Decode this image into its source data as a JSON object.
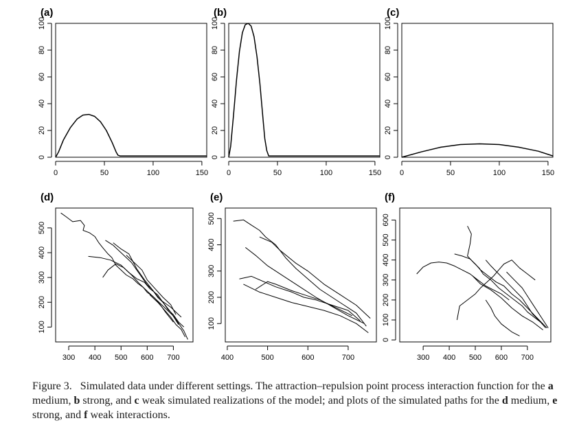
{
  "chart_data": [
    {
      "id": "a",
      "label": "(a)",
      "type": "line",
      "xlim": [
        0,
        155
      ],
      "ylim": [
        0,
        100
      ],
      "xticks": [
        0,
        50,
        100,
        150
      ],
      "yticks": [
        0,
        20,
        40,
        60,
        80,
        100
      ],
      "series": [
        {
          "x": [
            0,
            3,
            8,
            15,
            22,
            28,
            34,
            40,
            46,
            52,
            58,
            62,
            64,
            66,
            70,
            100,
            155
          ],
          "y": [
            0,
            4,
            13,
            22,
            28.5,
            31.5,
            32,
            30.5,
            26.5,
            20,
            11,
            4,
            1.5,
            1,
            1,
            1,
            1
          ]
        }
      ]
    },
    {
      "id": "b",
      "label": "(b)",
      "type": "line",
      "xlim": [
        0,
        155
      ],
      "ylim": [
        0,
        100
      ],
      "xticks": [
        0,
        50,
        100,
        150
      ],
      "yticks": [
        0,
        20,
        40,
        60,
        80,
        100
      ],
      "series": [
        {
          "x": [
            0,
            2,
            5,
            8,
            11,
            14,
            17,
            20,
            23,
            26,
            29,
            32,
            35,
            37,
            39,
            41,
            45,
            100,
            155
          ],
          "y": [
            0,
            8,
            32,
            58,
            79,
            93,
            99,
            100,
            98,
            90,
            75,
            55,
            30,
            14,
            5,
            1,
            1,
            1,
            1
          ]
        }
      ]
    },
    {
      "id": "c",
      "label": "(c)",
      "type": "line",
      "xlim": [
        0,
        155
      ],
      "ylim": [
        0,
        100
      ],
      "xticks": [
        0,
        50,
        100,
        150
      ],
      "yticks": [
        0,
        20,
        40,
        60,
        80,
        100
      ],
      "series": [
        {
          "x": [
            0,
            20,
            40,
            60,
            80,
            100,
            120,
            140,
            155
          ],
          "y": [
            0,
            4,
            7.5,
            9.5,
            10,
            9.5,
            7.5,
            4.5,
            1
          ]
        }
      ]
    },
    {
      "id": "d",
      "label": "(d)",
      "type": "line",
      "xlim": [
        250,
        775
      ],
      "ylim": [
        40,
        580
      ],
      "xticks": [
        300,
        400,
        500,
        600,
        700
      ],
      "yticks": [
        100,
        200,
        300,
        400,
        500
      ],
      "series": [
        {
          "x": [
            270,
            290,
            315,
            345,
            360,
            355,
            380,
            400,
            415,
            430,
            450,
            465,
            480,
            500,
            520,
            545,
            565,
            585,
            600,
            620,
            640,
            660,
            680,
            700,
            720,
            740,
            755
          ],
          "y": [
            560,
            545,
            525,
            530,
            510,
            490,
            480,
            465,
            440,
            420,
            395,
            380,
            350,
            330,
            310,
            295,
            275,
            260,
            240,
            225,
            205,
            185,
            165,
            145,
            115,
            85,
            50
          ]
        },
        {
          "x": [
            440,
            470,
            500,
            520,
            540,
            560,
            580,
            600,
            620,
            640,
            660,
            680,
            700,
            720,
            740
          ],
          "y": [
            450,
            430,
            400,
            380,
            360,
            330,
            300,
            270,
            250,
            220,
            200,
            170,
            150,
            120,
            100
          ]
        },
        {
          "x": [
            375,
            420,
            460,
            500,
            530,
            560,
            590,
            610,
            640,
            660,
            690,
            720
          ],
          "y": [
            385,
            380,
            370,
            350,
            320,
            295,
            280,
            255,
            230,
            200,
            160,
            110
          ]
        },
        {
          "x": [
            430,
            450,
            480,
            510,
            540,
            570,
            600,
            630,
            650,
            670,
            700
          ],
          "y": [
            300,
            330,
            355,
            340,
            310,
            275,
            245,
            215,
            190,
            160,
            120
          ]
        },
        {
          "x": [
            470,
            500,
            530,
            545,
            560,
            590,
            620,
            650,
            690,
            730
          ],
          "y": [
            440,
            415,
            395,
            365,
            335,
            290,
            250,
            210,
            180,
            140
          ]
        },
        {
          "x": [
            520,
            550,
            580,
            600,
            630,
            660,
            690,
            710
          ],
          "y": [
            390,
            360,
            330,
            290,
            255,
            220,
            190,
            150
          ]
        },
        {
          "x": [
            610,
            640,
            665,
            690,
            710,
            730,
            745
          ],
          "y": [
            230,
            200,
            170,
            140,
            110,
            90,
            60
          ]
        }
      ]
    },
    {
      "id": "e",
      "label": "(e)",
      "type": "line",
      "xlim": [
        395,
        770
      ],
      "ylim": [
        30,
        540
      ],
      "xticks": [
        400,
        500,
        600,
        700
      ],
      "yticks": [
        100,
        200,
        300,
        400,
        500
      ],
      "series": [
        {
          "x": [
            415,
            440,
            460,
            480,
            495,
            520,
            545,
            570,
            600,
            630,
            660,
            690,
            720,
            745
          ],
          "y": [
            490,
            495,
            475,
            455,
            430,
            400,
            350,
            310,
            270,
            230,
            200,
            170,
            140,
            90
          ]
        },
        {
          "x": [
            430,
            460,
            490,
            520,
            560,
            590,
            620,
            660,
            700,
            730
          ],
          "y": [
            270,
            280,
            260,
            240,
            220,
            200,
            190,
            170,
            150,
            110
          ]
        },
        {
          "x": [
            445,
            470,
            500,
            540,
            580,
            620,
            660,
            700,
            740
          ],
          "y": [
            390,
            360,
            320,
            280,
            240,
            200,
            165,
            130,
            100
          ]
        },
        {
          "x": [
            470,
            500,
            520,
            560,
            590,
            630,
            670,
            710
          ],
          "y": [
            230,
            260,
            250,
            225,
            210,
            190,
            160,
            130
          ]
        },
        {
          "x": [
            480,
            510,
            530,
            570,
            600,
            640,
            680,
            720,
            755
          ],
          "y": [
            430,
            410,
            380,
            330,
            300,
            250,
            210,
            170,
            120
          ]
        },
        {
          "x": [
            440,
            480,
            520,
            560,
            600,
            640,
            680,
            720,
            750
          ],
          "y": [
            250,
            220,
            200,
            180,
            165,
            150,
            130,
            100,
            65
          ]
        }
      ]
    },
    {
      "id": "f",
      "label": "(f)",
      "type": "line",
      "xlim": [
        210,
        790
      ],
      "ylim": [
        -10,
        660
      ],
      "xticks": [
        300,
        400,
        500,
        600,
        700
      ],
      "yticks": [
        0,
        100,
        200,
        300,
        400,
        500,
        600
      ],
      "series": [
        {
          "x": [
            470,
            485,
            480,
            470,
            495,
            515,
            530,
            560,
            590,
            620,
            650,
            680,
            700,
            730,
            760,
            775
          ],
          "y": [
            570,
            530,
            480,
            420,
            385,
            360,
            330,
            300,
            260,
            230,
            200,
            170,
            140,
            110,
            80,
            60
          ]
        },
        {
          "x": [
            420,
            450,
            480,
            500,
            520,
            550,
            580,
            610,
            640,
            670,
            700,
            730,
            760
          ],
          "y": [
            430,
            420,
            405,
            380,
            350,
            320,
            290,
            270,
            230,
            200,
            160,
            120,
            80
          ]
        },
        {
          "x": [
            275,
            300,
            330,
            360,
            390,
            420,
            450,
            480,
            510,
            540,
            570,
            600,
            630
          ],
          "y": [
            330,
            365,
            385,
            390,
            385,
            370,
            350,
            330,
            300,
            270,
            250,
            230,
            200
          ]
        },
        {
          "x": [
            430,
            440,
            470,
            500,
            520,
            545,
            570,
            590,
            610,
            640,
            670,
            700,
            730
          ],
          "y": [
            100,
            170,
            200,
            230,
            260,
            290,
            320,
            350,
            380,
            400,
            360,
            330,
            300
          ]
        },
        {
          "x": [
            540,
            560,
            590,
            620,
            650,
            680,
            700,
            720,
            750,
            770
          ],
          "y": [
            400,
            370,
            330,
            290,
            250,
            210,
            170,
            130,
            90,
            60
          ]
        },
        {
          "x": [
            490,
            520,
            560,
            600,
            640,
            680,
            720,
            760
          ],
          "y": [
            320,
            280,
            250,
            210,
            160,
            120,
            90,
            50
          ]
        },
        {
          "x": [
            620,
            650,
            680,
            700,
            720,
            740,
            760,
            780
          ],
          "y": [
            340,
            300,
            260,
            220,
            180,
            140,
            100,
            60
          ]
        },
        {
          "x": [
            540,
            560,
            575,
            600,
            640,
            670
          ],
          "y": [
            200,
            160,
            120,
            80,
            40,
            20
          ]
        }
      ]
    }
  ],
  "caption": {
    "lead": "Figure 3.",
    "t1": "Simulated data under different settings. The attraction–repulsion point process interaction function for the ",
    "b1": "a",
    "t2": " medium, ",
    "b2": "b",
    "t3": " strong, and ",
    "b3": "c",
    "t4": " weak simulated realizations of the model; and plots of the simulated paths for the ",
    "b4": "d",
    "t5": " medium, ",
    "b5": "e",
    "t6": " strong, and ",
    "b6": "f",
    "t7": " weak interactions."
  }
}
